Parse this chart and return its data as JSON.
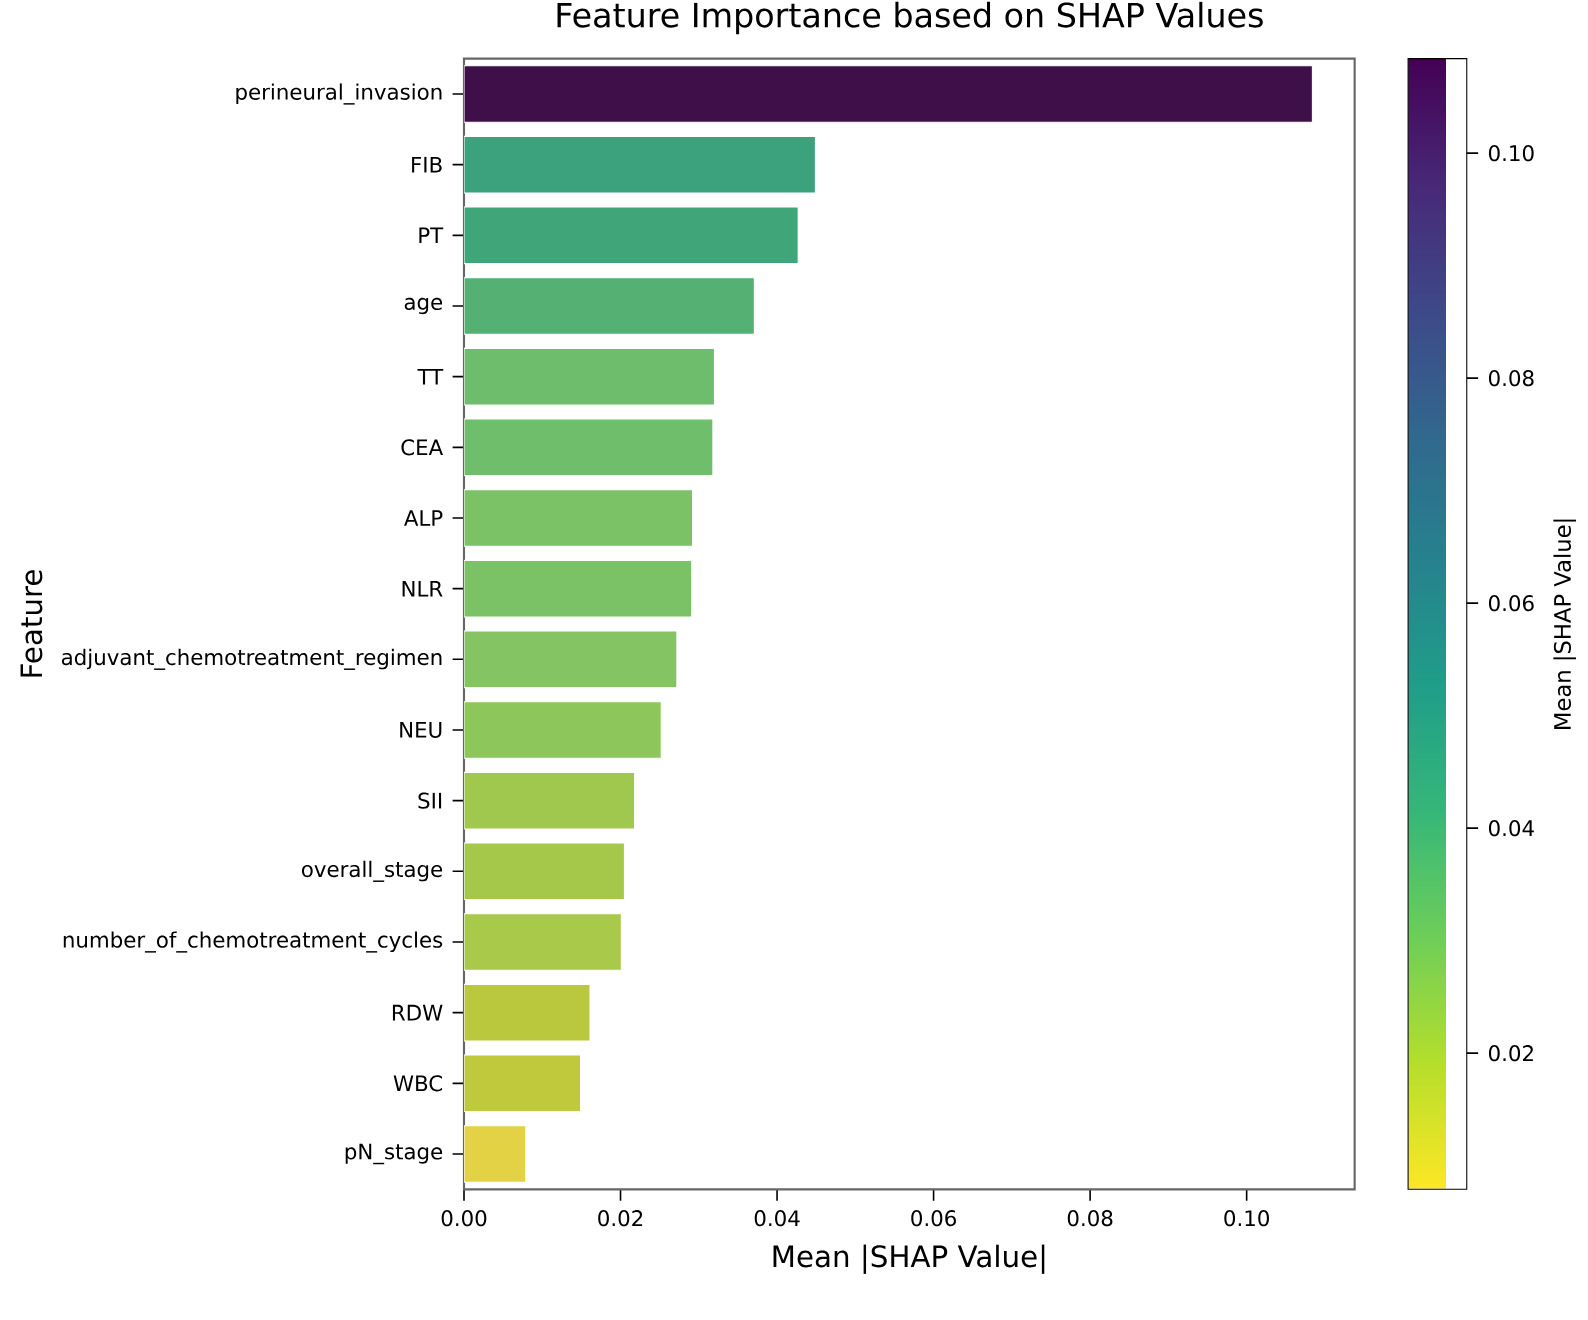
{
  "chart_data": {
    "type": "bar",
    "orientation": "horizontal",
    "title": "Feature Importance based on SHAP Values",
    "xlabel": "Mean |SHAP Value|",
    "ylabel": "Feature",
    "clabel": "Mean |SHAP Value|",
    "categories": [
      "perineural_invasion",
      "FIB",
      "PT",
      "age",
      "TT",
      "CEA",
      "ALP",
      "NLR",
      "adjuvant_chemotreatment_regimen",
      "NEU",
      "SII",
      "overall_stage",
      "number_of_chemotreatment_cycles",
      "RDW",
      "WBC",
      "pN_stage"
    ],
    "values": [
      0.1084,
      0.0449,
      0.0427,
      0.0371,
      0.032,
      0.0318,
      0.0292,
      0.0291,
      0.0272,
      0.0252,
      0.0218,
      0.0205,
      0.0201,
      0.0161,
      0.0149,
      0.0079
    ],
    "colors": [
      "#3f0f4a",
      "#3ba27d",
      "#40a67a",
      "#55b073",
      "#6dbd6d",
      "#6fbe6c",
      "#7bc266",
      "#7bc266",
      "#84c462",
      "#8dc65a",
      "#a0c84f",
      "#a5c84b",
      "#a8c94a",
      "#bac83e",
      "#bfc93b",
      "#e2d244"
    ],
    "xlim": [
      0,
      0.1138
    ],
    "xticks": [
      {
        "value": 0,
        "label": "0.00"
      },
      {
        "value": 0.02,
        "label": "0.02"
      },
      {
        "value": 0.04,
        "label": "0.04"
      },
      {
        "value": 0.06,
        "label": "0.06"
      },
      {
        "value": 0.08,
        "label": "0.08"
      },
      {
        "value": 0.1,
        "label": "0.10"
      }
    ],
    "clim": [
      0.0079,
      0.1084
    ],
    "cticks": [
      {
        "value": 0.02,
        "label": "0.02"
      },
      {
        "value": 0.04,
        "label": "0.04"
      },
      {
        "value": 0.06,
        "label": "0.06"
      },
      {
        "value": 0.08,
        "label": "0.08"
      },
      {
        "value": 0.1,
        "label": "0.10"
      }
    ]
  }
}
